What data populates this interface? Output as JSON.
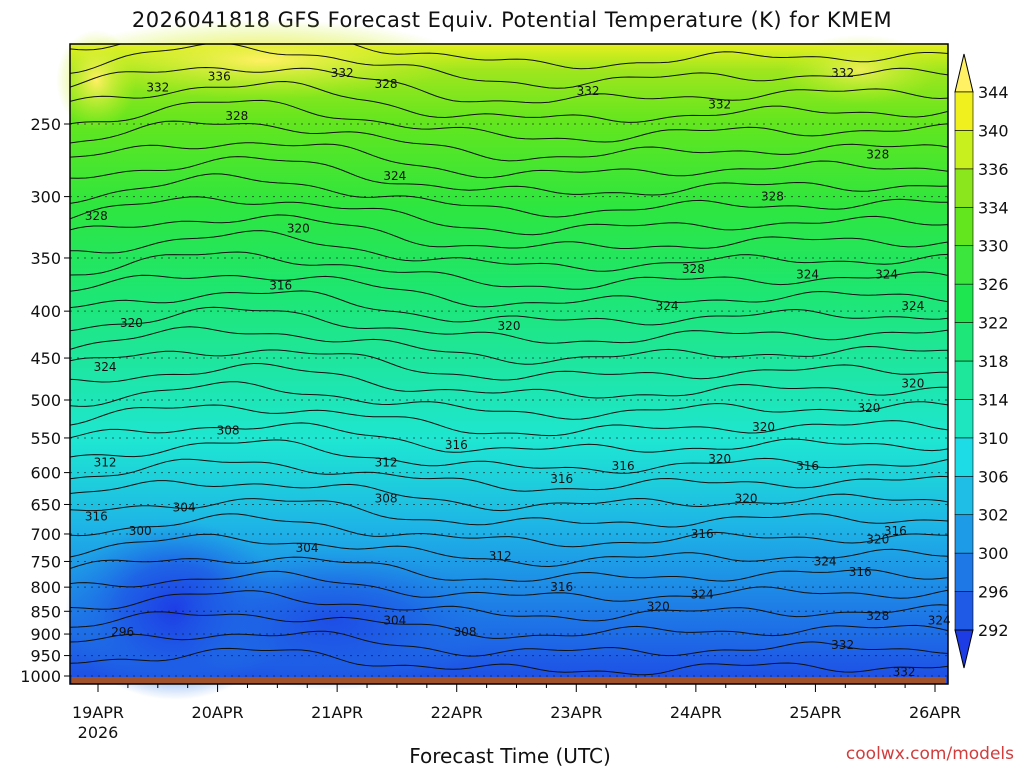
{
  "title": "2026041818 GFS Forecast Equiv. Potential Temperature (K) for KMEM",
  "credit": "coolwx.com/models",
  "chart_data": {
    "type": "heatmap",
    "title": "2026041818 GFS Forecast Equiv. Potential Temperature (K) for KMEM",
    "xlabel": "Forecast Time (UTC)",
    "ylabel": "",
    "x_ticks": [
      "19APR",
      "20APR",
      "21APR",
      "22APR",
      "23APR",
      "24APR",
      "25APR",
      "26APR"
    ],
    "x_tick_year": "2026",
    "y_ticks": [
      250,
      300,
      350,
      400,
      450,
      500,
      550,
      600,
      650,
      700,
      750,
      800,
      850,
      900,
      950,
      1000
    ],
    "colorbar_levels": [
      292,
      296,
      300,
      302,
      306,
      310,
      314,
      318,
      322,
      326,
      330,
      334,
      336,
      340,
      344
    ],
    "colorbar_colors": [
      "#1e3ce6",
      "#1e5ae6",
      "#1e78e6",
      "#1e9be6",
      "#1ebee6",
      "#1edce6",
      "#1ee6be",
      "#1ee69b",
      "#1ee678",
      "#1ee650",
      "#3ce63c",
      "#64e61e",
      "#8ce61e",
      "#c8f01e",
      "#f0f01e",
      "#fff064"
    ],
    "colorbar_tick_labels": [
      "292",
      "296",
      "300",
      "302",
      "306",
      "310",
      "314",
      "318",
      "322",
      "326",
      "330",
      "334",
      "336",
      "340",
      "344"
    ],
    "contour_labels": [
      {
        "text": "336",
        "t": 0.17,
        "p": 222
      },
      {
        "text": "332",
        "t": 0.1,
        "p": 228
      },
      {
        "text": "332",
        "t": 0.31,
        "p": 220
      },
      {
        "text": "328",
        "t": 0.36,
        "p": 226
      },
      {
        "text": "332",
        "t": 0.59,
        "p": 230
      },
      {
        "text": "332",
        "t": 0.74,
        "p": 238
      },
      {
        "text": "332",
        "t": 0.88,
        "p": 220
      },
      {
        "text": "328",
        "t": 0.19,
        "p": 245
      },
      {
        "text": "328",
        "t": 0.03,
        "p": 315
      },
      {
        "text": "324",
        "t": 0.37,
        "p": 285
      },
      {
        "text": "328",
        "t": 0.8,
        "p": 300
      },
      {
        "text": "328",
        "t": 0.92,
        "p": 270
      },
      {
        "text": "320",
        "t": 0.26,
        "p": 325
      },
      {
        "text": "316",
        "t": 0.24,
        "p": 375
      },
      {
        "text": "328",
        "t": 0.71,
        "p": 360
      },
      {
        "text": "324",
        "t": 0.84,
        "p": 365
      },
      {
        "text": "324",
        "t": 0.93,
        "p": 365
      },
      {
        "text": "320",
        "t": 0.07,
        "p": 412
      },
      {
        "text": "324",
        "t": 0.68,
        "p": 395
      },
      {
        "text": "324",
        "t": 0.96,
        "p": 395
      },
      {
        "text": "320",
        "t": 0.5,
        "p": 415
      },
      {
        "text": "324",
        "t": 0.04,
        "p": 460
      },
      {
        "text": "320",
        "t": 0.96,
        "p": 480
      },
      {
        "text": "320",
        "t": 0.91,
        "p": 510
      },
      {
        "text": "308",
        "t": 0.18,
        "p": 540
      },
      {
        "text": "320",
        "t": 0.79,
        "p": 535
      },
      {
        "text": "316",
        "t": 0.44,
        "p": 560
      },
      {
        "text": "312",
        "t": 0.36,
        "p": 585
      },
      {
        "text": "316",
        "t": 0.63,
        "p": 590
      },
      {
        "text": "320",
        "t": 0.74,
        "p": 580
      },
      {
        "text": "316",
        "t": 0.84,
        "p": 590
      },
      {
        "text": "312",
        "t": 0.04,
        "p": 585
      },
      {
        "text": "316",
        "t": 0.56,
        "p": 610
      },
      {
        "text": "320",
        "t": 0.77,
        "p": 640
      },
      {
        "text": "304",
        "t": 0.13,
        "p": 655
      },
      {
        "text": "308",
        "t": 0.36,
        "p": 640
      },
      {
        "text": "316",
        "t": 0.03,
        "p": 670
      },
      {
        "text": "300",
        "t": 0.08,
        "p": 695
      },
      {
        "text": "316",
        "t": 0.72,
        "p": 700
      },
      {
        "text": "316",
        "t": 0.94,
        "p": 695
      },
      {
        "text": "320",
        "t": 0.92,
        "p": 710
      },
      {
        "text": "304",
        "t": 0.27,
        "p": 725
      },
      {
        "text": "312",
        "t": 0.49,
        "p": 740
      },
      {
        "text": "324",
        "t": 0.86,
        "p": 750
      },
      {
        "text": "316",
        "t": 0.9,
        "p": 770
      },
      {
        "text": "316",
        "t": 0.56,
        "p": 800
      },
      {
        "text": "324",
        "t": 0.72,
        "p": 815
      },
      {
        "text": "320",
        "t": 0.67,
        "p": 840
      },
      {
        "text": "328",
        "t": 0.92,
        "p": 860
      },
      {
        "text": "304",
        "t": 0.37,
        "p": 870
      },
      {
        "text": "308",
        "t": 0.45,
        "p": 895
      },
      {
        "text": "324",
        "t": 0.99,
        "p": 870
      },
      {
        "text": "296",
        "t": 0.06,
        "p": 895
      },
      {
        "text": "332",
        "t": 0.88,
        "p": 925
      },
      {
        "text": "332",
        "t": 0.95,
        "p": 990
      }
    ]
  }
}
